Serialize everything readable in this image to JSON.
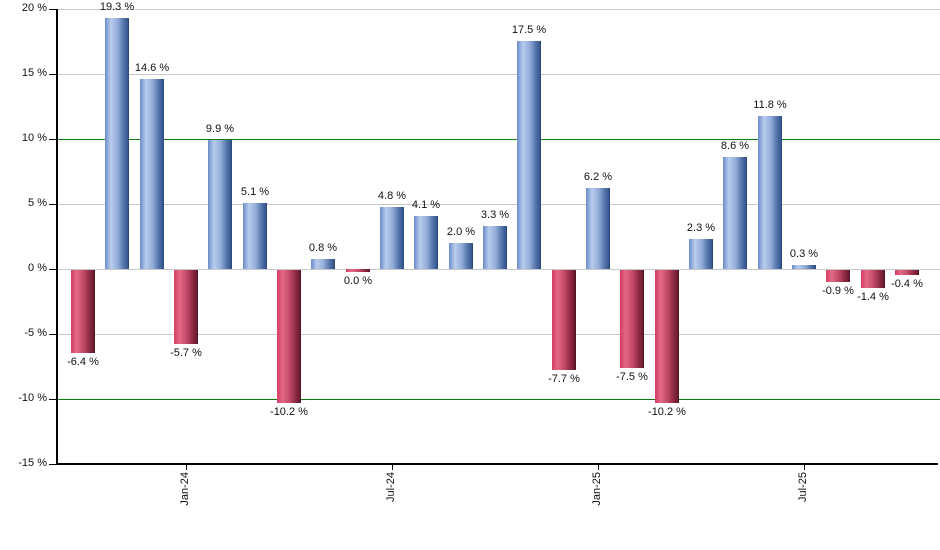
{
  "chart_data": {
    "type": "bar",
    "title": "",
    "unit": "%",
    "values": [
      -6.4,
      19.3,
      14.6,
      -5.7,
      9.9,
      5.1,
      -10.2,
      0.8,
      0.0,
      4.8,
      4.1,
      2.0,
      3.3,
      17.5,
      -7.7,
      6.2,
      -7.5,
      -10.2,
      2.3,
      8.6,
      11.8,
      0.3,
      -0.9,
      -1.4,
      -0.4
    ],
    "bar_labels": [
      "-6.4 %",
      "19.3 %",
      "14.6 %",
      "-5.7 %",
      "9.9 %",
      "5.1 %",
      "-10.2 %",
      "0.8 %",
      "0.0 %",
      "4.8 %",
      "4.1 %",
      "2.0 %",
      "3.3 %",
      "17.5 %",
      "-7.7 %",
      "6.2 %",
      "-7.5 %",
      "-10.2 %",
      "2.3 %",
      "8.6 %",
      "11.8 %",
      "0.3 %",
      "-0.9 %",
      "-1.4 %",
      "-0.4 %"
    ],
    "x_tick_labels": [
      "Jan-24",
      "Jul-24",
      "Jan-25",
      "Jul-25"
    ],
    "x_tick_bar_indices": [
      3,
      9,
      15,
      21
    ],
    "y_tick_labels": [
      "20 %",
      "15 %",
      "10 %",
      "5 %",
      "0 %",
      "-5 %",
      "-10 %",
      "-15 %"
    ],
    "y_tick_values": [
      20,
      15,
      10,
      5,
      0,
      -5,
      -10,
      -15
    ],
    "ylim": [
      -15,
      20
    ],
    "green_line_values": [
      10,
      -10
    ],
    "grid": "on",
    "legend": "none",
    "colors": {
      "positive_bar": "#6a8cc7",
      "positive_bar_highlight": "#b9ccee",
      "positive_bar_dark": "#34568e",
      "negative_bar": "#d23d61",
      "negative_bar_highlight": "#e46885",
      "negative_bar_dark": "#6a1b2e",
      "green_line": "#0e7c0e",
      "gridline": "#c8c8c8",
      "axis": "#000000",
      "label_text": "#111111",
      "background": "#ffffff"
    }
  }
}
